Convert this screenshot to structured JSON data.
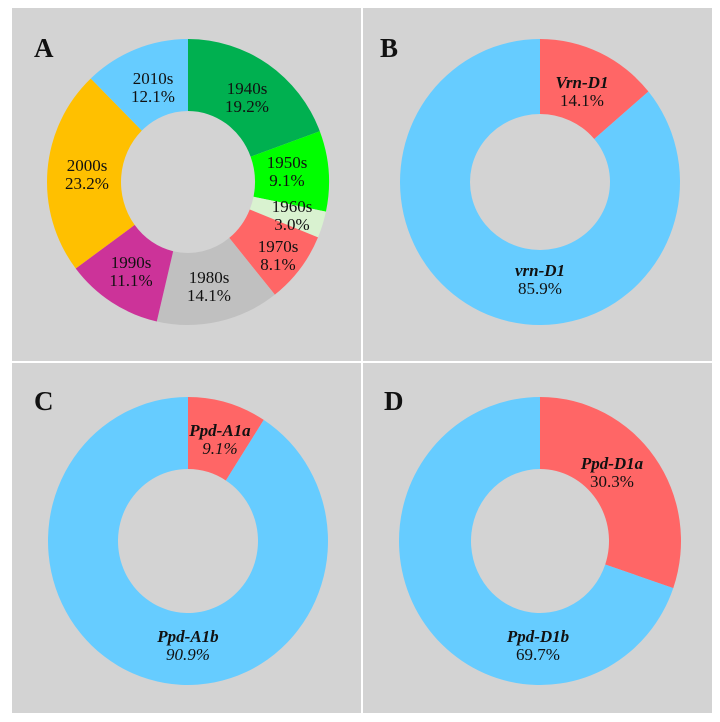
{
  "chart_data": [
    {
      "type": "pie",
      "panel": "A",
      "donut": true,
      "start": "top",
      "direction": "clockwise",
      "categories": [
        "1940s",
        "1950s",
        "1960s",
        "1970s",
        "1980s",
        "1990s",
        "2000s",
        "2010s"
      ],
      "values": [
        19.2,
        9.1,
        3.0,
        8.1,
        14.1,
        11.1,
        23.2,
        12.1
      ],
      "labels": [
        "19.2%",
        "9.1%",
        "3.0%",
        "8.1%",
        "14.1%",
        "11.1%",
        "23.2%",
        "12.1%"
      ],
      "colors": [
        "#00b050",
        "#00ff00",
        "#d9f2d0",
        "#ff6666",
        "#c0c0c0",
        "#cc3399",
        "#ffc000",
        "#66ccff"
      ],
      "italic_names": false
    },
    {
      "type": "pie",
      "panel": "B",
      "donut": true,
      "start": "top",
      "direction": "clockwise",
      "categories": [
        "Vrn-D1",
        "vrn-D1"
      ],
      "values": [
        14.1,
        85.9
      ],
      "labels": [
        "14.1%",
        "85.9%"
      ],
      "colors": [
        "#ff6666",
        "#66ccff"
      ],
      "italic_names": true
    },
    {
      "type": "pie",
      "panel": "C",
      "donut": true,
      "start": "top",
      "direction": "clockwise",
      "categories": [
        "Ppd-A1a",
        "Ppd-A1b"
      ],
      "values": [
        9.1,
        90.9
      ],
      "labels": [
        "9.1%",
        "90.9%"
      ],
      "colors": [
        "#ff6666",
        "#66ccff"
      ],
      "italic_names": true
    },
    {
      "type": "pie",
      "panel": "D",
      "donut": true,
      "start": "top",
      "direction": "clockwise",
      "categories": [
        "Ppd-D1a",
        "Ppd-D1b"
      ],
      "values": [
        30.3,
        69.7
      ],
      "labels": [
        "30.3%",
        "69.7%"
      ],
      "colors": [
        "#ff6666",
        "#66ccff"
      ],
      "italic_names": true
    }
  ],
  "panel_letters": [
    "A",
    "B",
    "C",
    "D"
  ],
  "colors": {
    "panel_bg": "#d3d3d3",
    "page_bg": "#ffffff"
  }
}
